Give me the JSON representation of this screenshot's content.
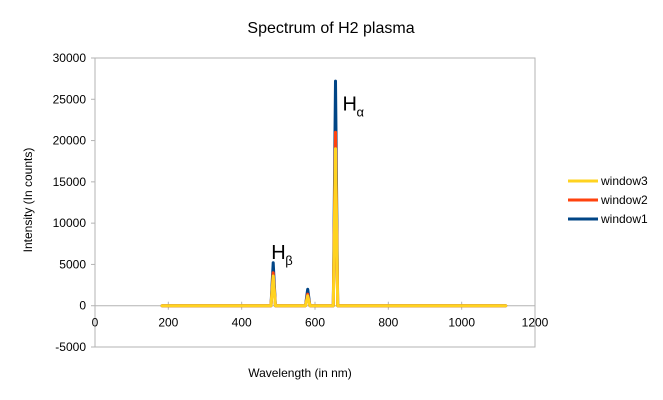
{
  "chart_data": {
    "type": "line",
    "title": "Spectrum of H2 plasma",
    "xlabel": "Wavelength (in nm)",
    "ylabel": "Intensity (In counts)",
    "xlim": [
      0,
      1200
    ],
    "ylim": [
      -5000,
      30000
    ],
    "x_ticks": [
      0,
      200,
      400,
      600,
      800,
      1000,
      1200
    ],
    "y_ticks": [
      -5000,
      0,
      5000,
      10000,
      15000,
      20000,
      25000,
      30000
    ],
    "grid": false,
    "legend_position": "right",
    "series": [
      {
        "name": "window1",
        "color": "#004586",
        "points": [
          [
            183,
            0
          ],
          [
            250,
            0
          ],
          [
            300,
            0
          ],
          [
            380,
            0
          ],
          [
            440,
            0
          ],
          [
            470,
            0
          ],
          [
            480,
            0
          ],
          [
            486,
            5200
          ],
          [
            492,
            0
          ],
          [
            560,
            0
          ],
          [
            574,
            0
          ],
          [
            580,
            2000
          ],
          [
            586,
            0
          ],
          [
            640,
            0
          ],
          [
            650,
            0
          ],
          [
            656,
            27200
          ],
          [
            662,
            0
          ],
          [
            700,
            0
          ],
          [
            900,
            0
          ],
          [
            1120,
            0
          ]
        ]
      },
      {
        "name": "window2",
        "color": "#ff420e",
        "points": [
          [
            183,
            0
          ],
          [
            250,
            0
          ],
          [
            300,
            0
          ],
          [
            380,
            0
          ],
          [
            440,
            0
          ],
          [
            470,
            0
          ],
          [
            480,
            0
          ],
          [
            486,
            4000
          ],
          [
            492,
            0
          ],
          [
            560,
            0
          ],
          [
            574,
            0
          ],
          [
            580,
            1400
          ],
          [
            586,
            0
          ],
          [
            640,
            0
          ],
          [
            650,
            0
          ],
          [
            656,
            21000
          ],
          [
            662,
            0
          ],
          [
            700,
            0
          ],
          [
            900,
            0
          ],
          [
            1120,
            0
          ]
        ]
      },
      {
        "name": "window3",
        "color": "#ffd320",
        "points": [
          [
            183,
            0
          ],
          [
            250,
            0
          ],
          [
            300,
            0
          ],
          [
            380,
            0
          ],
          [
            440,
            0
          ],
          [
            470,
            0
          ],
          [
            480,
            0
          ],
          [
            486,
            3600
          ],
          [
            492,
            0
          ],
          [
            560,
            0
          ],
          [
            574,
            0
          ],
          [
            580,
            1200
          ],
          [
            586,
            0
          ],
          [
            640,
            0
          ],
          [
            650,
            0
          ],
          [
            656,
            19000
          ],
          [
            662,
            0
          ],
          [
            700,
            0
          ],
          [
            900,
            0
          ],
          [
            1120,
            0
          ]
        ]
      }
    ],
    "legend_order": [
      "window3",
      "window2",
      "window1"
    ],
    "annotations": [
      {
        "main": "H",
        "sub": "α",
        "x": 656,
        "y": 24500
      },
      {
        "main": "H",
        "sub": "β",
        "x": 486,
        "y": 6500
      }
    ]
  }
}
